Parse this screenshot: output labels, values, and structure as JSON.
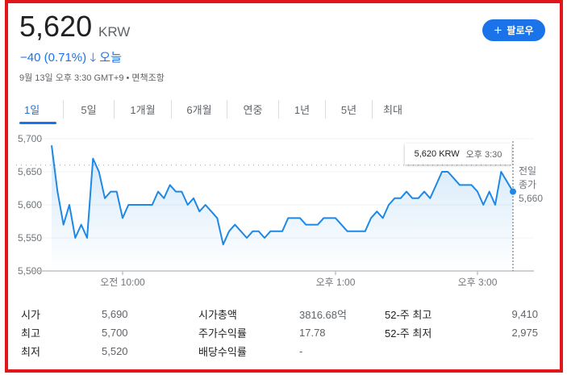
{
  "header": {
    "price": "5,620",
    "currency": "KRW",
    "change": "−40 (0.71%)",
    "change_icon": "arrow-down-icon",
    "change_period": "오늘",
    "meta": "9월 13일 오후 3:30 GMT+9 • 면책조항",
    "follow_label": "팔로우",
    "follow_icon": "plus-icon"
  },
  "tabs": [
    {
      "label": "1일",
      "active": true
    },
    {
      "label": "5일"
    },
    {
      "label": "1개월"
    },
    {
      "label": "6개월"
    },
    {
      "label": "연중"
    },
    {
      "label": "1년"
    },
    {
      "label": "5년"
    },
    {
      "label": "최대"
    }
  ],
  "colors": {
    "accent": "#1a73e8",
    "line": "#1e88e5",
    "negative": "#1a73e8",
    "border": "#e0161b"
  },
  "chart_data": {
    "type": "area",
    "ylim": [
      5500,
      5700
    ],
    "y_ticks": [
      "5,700",
      "5,650",
      "5,600",
      "5,550",
      "5,500"
    ],
    "y_tick_values": [
      5700,
      5650,
      5600,
      5550,
      5500
    ],
    "x_ticks": [
      {
        "label": "오전 10:00",
        "time": "10:00"
      },
      {
        "label": "오후 1:00",
        "time": "13:00"
      },
      {
        "label": "오후 3:00",
        "time": "15:00"
      }
    ],
    "x_range": [
      "09:00",
      "15:30"
    ],
    "times": [
      "09:00",
      "09:05",
      "09:10",
      "09:15",
      "09:20",
      "09:25",
      "09:30",
      "09:35",
      "09:40",
      "09:45",
      "09:50",
      "09:55",
      "10:00",
      "10:05",
      "10:10",
      "10:15",
      "10:20",
      "10:25",
      "10:30",
      "10:35",
      "10:40",
      "10:45",
      "10:50",
      "10:55",
      "11:00",
      "11:05",
      "11:10",
      "11:15",
      "11:20",
      "11:25",
      "11:30",
      "11:35",
      "11:40",
      "11:45",
      "11:50",
      "11:55",
      "12:00",
      "12:05",
      "12:10",
      "12:15",
      "12:20",
      "12:25",
      "12:30",
      "12:35",
      "12:40",
      "12:45",
      "12:50",
      "12:55",
      "13:00",
      "13:05",
      "13:10",
      "13:15",
      "13:20",
      "13:25",
      "13:30",
      "13:35",
      "13:40",
      "13:45",
      "13:50",
      "13:55",
      "14:00",
      "14:05",
      "14:10",
      "14:15",
      "14:20",
      "14:25",
      "14:30",
      "14:35",
      "14:40",
      "14:45",
      "14:50",
      "14:55",
      "15:00",
      "15:05",
      "15:10",
      "15:15",
      "15:20",
      "15:25",
      "15:30"
    ],
    "values": [
      5690,
      5620,
      5570,
      5600,
      5550,
      5570,
      5550,
      5670,
      5650,
      5610,
      5620,
      5620,
      5580,
      5600,
      5600,
      5600,
      5600,
      5600,
      5620,
      5610,
      5630,
      5620,
      5620,
      5600,
      5610,
      5590,
      5600,
      5590,
      5580,
      5540,
      5560,
      5570,
      5560,
      5550,
      5560,
      5560,
      5550,
      5560,
      5560,
      5560,
      5580,
      5580,
      5580,
      5570,
      5570,
      5570,
      5580,
      5580,
      5580,
      5570,
      5560,
      5560,
      5560,
      5560,
      5580,
      5590,
      5580,
      5600,
      5610,
      5610,
      5620,
      5610,
      5610,
      5620,
      5610,
      5630,
      5650,
      5650,
      5640,
      5630,
      5630,
      5630,
      5620,
      5600,
      5620,
      5600,
      5650,
      5635,
      5620
    ],
    "previous_close": 5660,
    "previous_close_label": "전일 종가",
    "previous_close_text": "5,660",
    "tooltip": {
      "price": "5,620 KRW",
      "time": "오후 3:30"
    }
  },
  "stats": [
    [
      {
        "label": "시가",
        "value": "5,690"
      },
      {
        "label": "시가총액",
        "value": "3816.68억"
      },
      {
        "label": "52-주 최고",
        "value": "9,410"
      }
    ],
    [
      {
        "label": "최고",
        "value": "5,700"
      },
      {
        "label": "주가수익률",
        "value": "17.78"
      },
      {
        "label": "52-주 최저",
        "value": "2,975"
      }
    ],
    [
      {
        "label": "최저",
        "value": "5,520"
      },
      {
        "label": "배당수익률",
        "value": "-"
      }
    ]
  ]
}
